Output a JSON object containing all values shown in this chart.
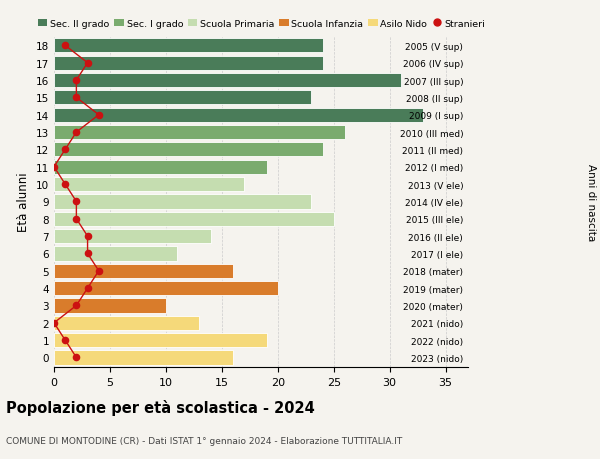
{
  "ages": [
    18,
    17,
    16,
    15,
    14,
    13,
    12,
    11,
    10,
    9,
    8,
    7,
    6,
    5,
    4,
    3,
    2,
    1,
    0
  ],
  "values": [
    24,
    24,
    31,
    23,
    33,
    26,
    24,
    19,
    17,
    23,
    25,
    14,
    11,
    16,
    20,
    10,
    13,
    19,
    16
  ],
  "stranieri": [
    1,
    3,
    2,
    2,
    4,
    2,
    1,
    0,
    1,
    2,
    2,
    3,
    3,
    4,
    3,
    2,
    0,
    1,
    2
  ],
  "bar_colors": [
    "#4a7c59",
    "#4a7c59",
    "#4a7c59",
    "#4a7c59",
    "#4a7c59",
    "#7aab6e",
    "#7aab6e",
    "#7aab6e",
    "#c5ddb0",
    "#c5ddb0",
    "#c5ddb0",
    "#c5ddb0",
    "#c5ddb0",
    "#d97c2b",
    "#d97c2b",
    "#d97c2b",
    "#f5d97a",
    "#f5d97a",
    "#f5d97a"
  ],
  "right_labels": [
    "2005 (V sup)",
    "2006 (IV sup)",
    "2007 (III sup)",
    "2008 (II sup)",
    "2009 (I sup)",
    "2010 (III med)",
    "2011 (II med)",
    "2012 (I med)",
    "2013 (V ele)",
    "2014 (IV ele)",
    "2015 (III ele)",
    "2016 (II ele)",
    "2017 (I ele)",
    "2018 (mater)",
    "2019 (mater)",
    "2020 (mater)",
    "2021 (nido)",
    "2022 (nido)",
    "2023 (nido)"
  ],
  "legend_labels": [
    "Sec. II grado",
    "Sec. I grado",
    "Scuola Primaria",
    "Scuola Infanzia",
    "Asilo Nido",
    "Stranieri"
  ],
  "legend_colors": [
    "#4a7c59",
    "#7aab6e",
    "#c5ddb0",
    "#d97c2b",
    "#f5d97a",
    "#cc1111"
  ],
  "title": "Popolazione per età scolastica - 2024",
  "subtitle": "COMUNE DI MONTODINE (CR) - Dati ISTAT 1° gennaio 2024 - Elaborazione TUTTITALIA.IT",
  "ylabel": "Età alunni",
  "right_ylabel": "Anni di nascita",
  "xlim": [
    0,
    37
  ],
  "xticks": [
    0,
    5,
    10,
    15,
    20,
    25,
    30,
    35
  ],
  "bg_color": "#f5f3ee",
  "grid_color": "#cccccc",
  "stranieri_color": "#cc1111"
}
